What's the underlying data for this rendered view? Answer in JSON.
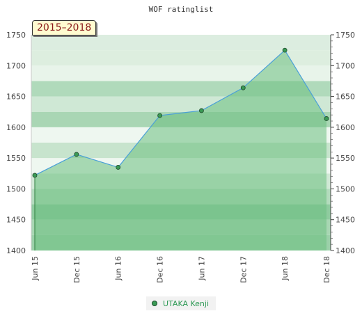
{
  "title": "WOF ratinglist",
  "period_label": "2015–2018",
  "chart_data": {
    "type": "area",
    "title": "WOF ratinglist",
    "categories": [
      "Jun 15",
      "Dec 15",
      "Jun 16",
      "Dec 16",
      "Jun 17",
      "Dec 17",
      "Jun 18",
      "Dec 18"
    ],
    "series": [
      {
        "name": "UTAKA Kenji",
        "values": [
          1522,
          1556,
          1535,
          1619,
          1627,
          1664,
          1725,
          1614
        ]
      }
    ],
    "ylim": [
      1400,
      1750
    ],
    "yticks": [
      1400,
      1450,
      1500,
      1550,
      1600,
      1650,
      1700,
      1750
    ],
    "grid": true,
    "legend_position": "bottom-center",
    "colors": {
      "line": "#4aa0d8",
      "fill": "#6cbf7f",
      "marker": "#3a9a55"
    }
  },
  "legend": {
    "items": [
      {
        "label": "UTAKA Kenji"
      }
    ]
  }
}
